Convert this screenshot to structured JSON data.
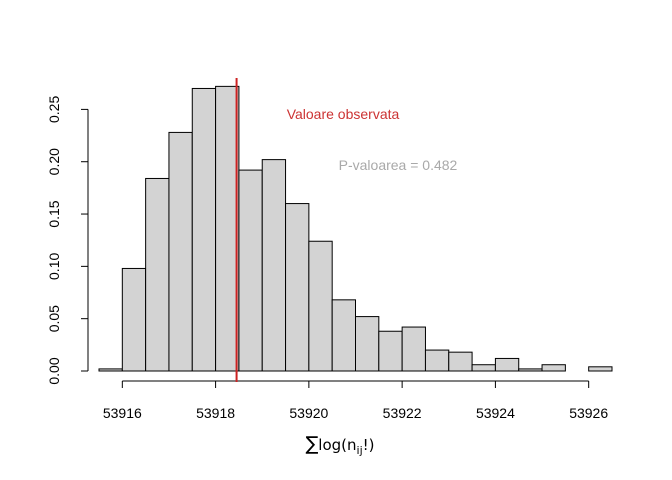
{
  "chart_data": {
    "type": "bar",
    "subtype": "histogram",
    "bin_width": 0.5,
    "bins": [
      {
        "x0": 53915.5,
        "x1": 53916.0,
        "density": 0.002
      },
      {
        "x0": 53916.0,
        "x1": 53916.5,
        "density": 0.098
      },
      {
        "x0": 53916.5,
        "x1": 53917.0,
        "density": 0.184
      },
      {
        "x0": 53917.0,
        "x1": 53917.5,
        "density": 0.228
      },
      {
        "x0": 53917.5,
        "x1": 53918.0,
        "density": 0.27
      },
      {
        "x0": 53918.0,
        "x1": 53918.5,
        "density": 0.272
      },
      {
        "x0": 53918.5,
        "x1": 53919.0,
        "density": 0.192
      },
      {
        "x0": 53919.0,
        "x1": 53919.5,
        "density": 0.202
      },
      {
        "x0": 53919.5,
        "x1": 53920.0,
        "density": 0.16
      },
      {
        "x0": 53920.0,
        "x1": 53920.5,
        "density": 0.124
      },
      {
        "x0": 53920.5,
        "x1": 53921.0,
        "density": 0.068
      },
      {
        "x0": 53921.0,
        "x1": 53921.5,
        "density": 0.052
      },
      {
        "x0": 53921.5,
        "x1": 53922.0,
        "density": 0.038
      },
      {
        "x0": 53922.0,
        "x1": 53922.5,
        "density": 0.042
      },
      {
        "x0": 53922.5,
        "x1": 53923.0,
        "density": 0.02
      },
      {
        "x0": 53923.0,
        "x1": 53923.5,
        "density": 0.018
      },
      {
        "x0": 53923.5,
        "x1": 53924.0,
        "density": 0.006
      },
      {
        "x0": 53924.0,
        "x1": 53924.5,
        "density": 0.012
      },
      {
        "x0": 53924.5,
        "x1": 53925.0,
        "density": 0.002
      },
      {
        "x0": 53925.0,
        "x1": 53925.5,
        "density": 0.006
      },
      {
        "x0": 53925.5,
        "x1": 53926.0,
        "density": 0.0
      },
      {
        "x0": 53926.0,
        "x1": 53926.5,
        "density": 0.004
      }
    ],
    "observed_value": 53918.45,
    "xlim": [
      53915.5,
      53926.5
    ],
    "ylim": [
      0,
      0.28
    ],
    "x_ticks": [
      53916,
      53918,
      53920,
      53922,
      53924,
      53926
    ],
    "y_ticks": [
      0.0,
      0.05,
      0.1,
      0.15,
      0.2,
      0.25
    ],
    "y_tick_labels": [
      "0.00",
      "0.05",
      "0.10",
      "0.15",
      "0.20",
      "0.25"
    ],
    "xlabel_sigma": "∑",
    "xlabel_text": "log(n",
    "xlabel_sub": "ij",
    "xlabel_end": "!)",
    "ylabel": "",
    "title": "",
    "annotations": {
      "observed_label": "Valoare observata",
      "pvalue_label": "P-valoarea = 0.482"
    },
    "colors": {
      "bar_fill": "#d3d3d3",
      "bar_stroke": "#000000",
      "observed_line": "#cc2222",
      "observed_text": "#cc3333",
      "pvalue_text": "#a9a9a9"
    },
    "grid": false,
    "legend": "none"
  }
}
